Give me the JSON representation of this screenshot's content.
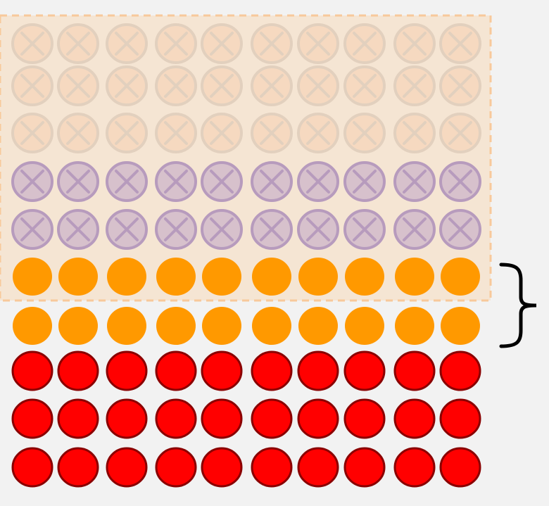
{
  "diagram": {
    "type": "dot-array",
    "columns": 10,
    "rows": [
      {
        "kind": "crossed",
        "color": "#f6d9c0",
        "stroke": "#e2d0be",
        "count": 10
      },
      {
        "kind": "crossed",
        "color": "#f6d9c0",
        "stroke": "#e2d0be",
        "count": 10
      },
      {
        "kind": "crossed",
        "color": "#f6d9c0",
        "stroke": "#e2d0be",
        "count": 10
      },
      {
        "kind": "crossed",
        "color": "#d7c1cc",
        "stroke": "#b79bbd",
        "count": 10
      },
      {
        "kind": "crossed",
        "color": "#d7c1cc",
        "stroke": "#b79bbd",
        "count": 10
      },
      {
        "kind": "orange",
        "color": "#ff9900",
        "stroke": "#ff9900",
        "count": 10
      },
      {
        "kind": "orange",
        "color": "#ff9900",
        "stroke": "#ff9900",
        "count": 10
      },
      {
        "kind": "red",
        "color": "#ff0000",
        "stroke": "#8a0000",
        "count": 10
      },
      {
        "kind": "red",
        "color": "#ff0000",
        "stroke": "#8a0000",
        "count": 10
      },
      {
        "kind": "red",
        "color": "#ff0000",
        "stroke": "#8a0000",
        "count": 10
      }
    ],
    "highlight_box": {
      "fill": "#f5e5d3",
      "border_color": "#f8c99b",
      "style": "dashed",
      "covers_rows": 6
    },
    "brace": {
      "covers_rows": [
        5,
        6
      ],
      "side": "right"
    }
  }
}
